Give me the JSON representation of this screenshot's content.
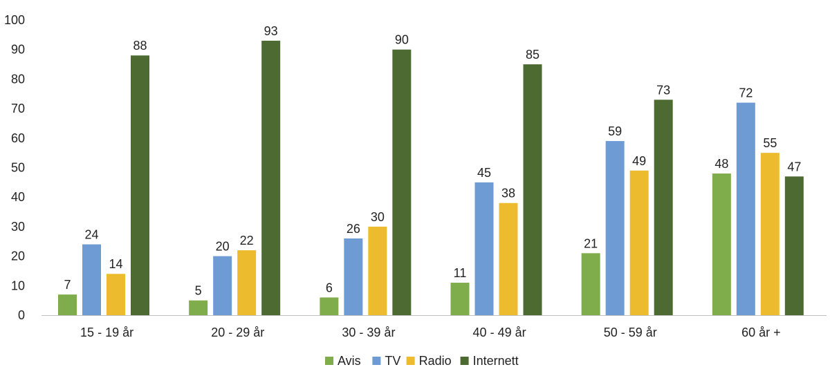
{
  "chart_data": {
    "type": "bar",
    "categories": [
      "15 - 19 år",
      "20 - 29 år",
      "30 - 39 år",
      "40 - 49 år",
      "50 - 59 år",
      "60 år +"
    ],
    "series": [
      {
        "name": "Avis",
        "color": "#7fad4b",
        "values": [
          7,
          5,
          6,
          11,
          21,
          48
        ]
      },
      {
        "name": "TV",
        "color": "#6f9bd4",
        "values": [
          24,
          20,
          26,
          45,
          59,
          72
        ]
      },
      {
        "name": "Radio",
        "color": "#ecbb2e",
        "values": [
          14,
          22,
          30,
          38,
          49,
          55
        ]
      },
      {
        "name": "Internett",
        "color": "#4d6a32",
        "values": [
          88,
          93,
          90,
          85,
          73,
          47
        ]
      }
    ],
    "ylim": [
      0,
      100
    ],
    "yticks": [
      0,
      10,
      20,
      30,
      40,
      50,
      60,
      70,
      80,
      90,
      100
    ],
    "title": "",
    "xlabel": "",
    "ylabel": "",
    "grid": false,
    "legend_position": "bottom"
  }
}
